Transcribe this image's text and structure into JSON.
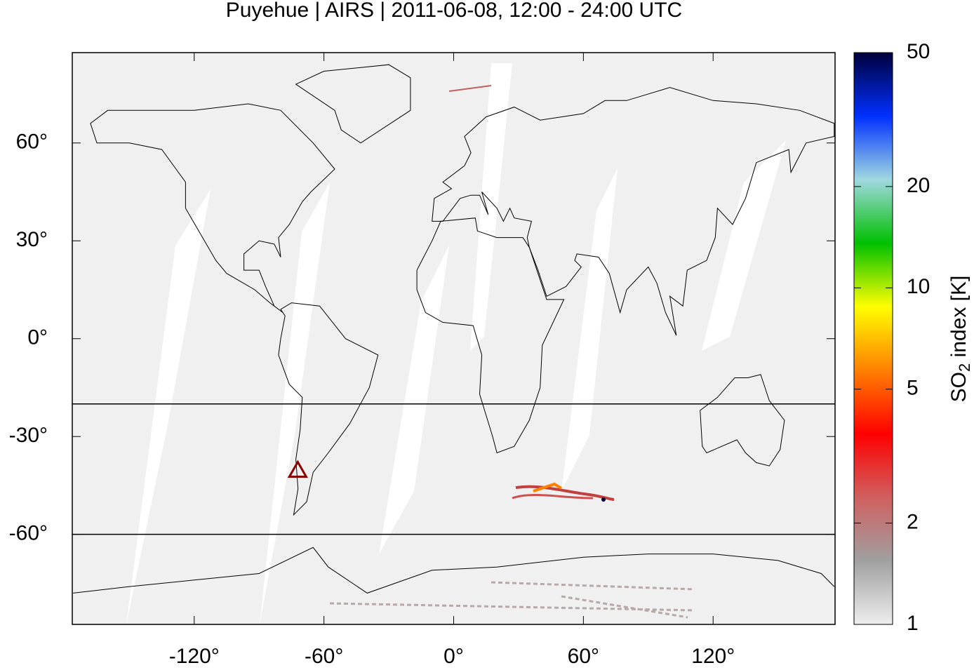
{
  "chart_data": {
    "type": "map",
    "title": "Puyehue | AIRS | 2011-06-08, 12:00 - 24:00 UTC",
    "xlim": [
      -176.4,
      176.4
    ],
    "ylim": [
      -87.6,
      87.7
    ],
    "xticks": [
      {
        "value": -120,
        "label": "-120°"
      },
      {
        "value": -60,
        "label": "-60°"
      },
      {
        "value": 0,
        "label": "0°"
      },
      {
        "value": 60,
        "label": "60°"
      },
      {
        "value": 120,
        "label": "120°"
      }
    ],
    "yticks": [
      {
        "value": 60,
        "label": "60°"
      },
      {
        "value": 30,
        "label": "30°"
      },
      {
        "value": 0,
        "label": "0°"
      },
      {
        "value": -30,
        "label": "-30°"
      },
      {
        "value": -60,
        "label": "-60°"
      }
    ],
    "reference_lats": [
      -20,
      -60
    ],
    "volcano": {
      "lon": -72.1,
      "lat": -40.6,
      "color": "#8b0000"
    },
    "colorbar": {
      "label_main": "SO",
      "label_sub": "2",
      "label_rest": " index [K]",
      "log": true,
      "range": [
        1,
        50
      ],
      "ticks": [
        1,
        2,
        5,
        10,
        20,
        50
      ],
      "colors": [
        "#eeeeee",
        "#a0a0a0",
        "#d06060",
        "#ff0000",
        "#ff8000",
        "#ffff00",
        "#00c000",
        "#a0d8e0",
        "#0030ff",
        "#00003a"
      ]
    }
  }
}
